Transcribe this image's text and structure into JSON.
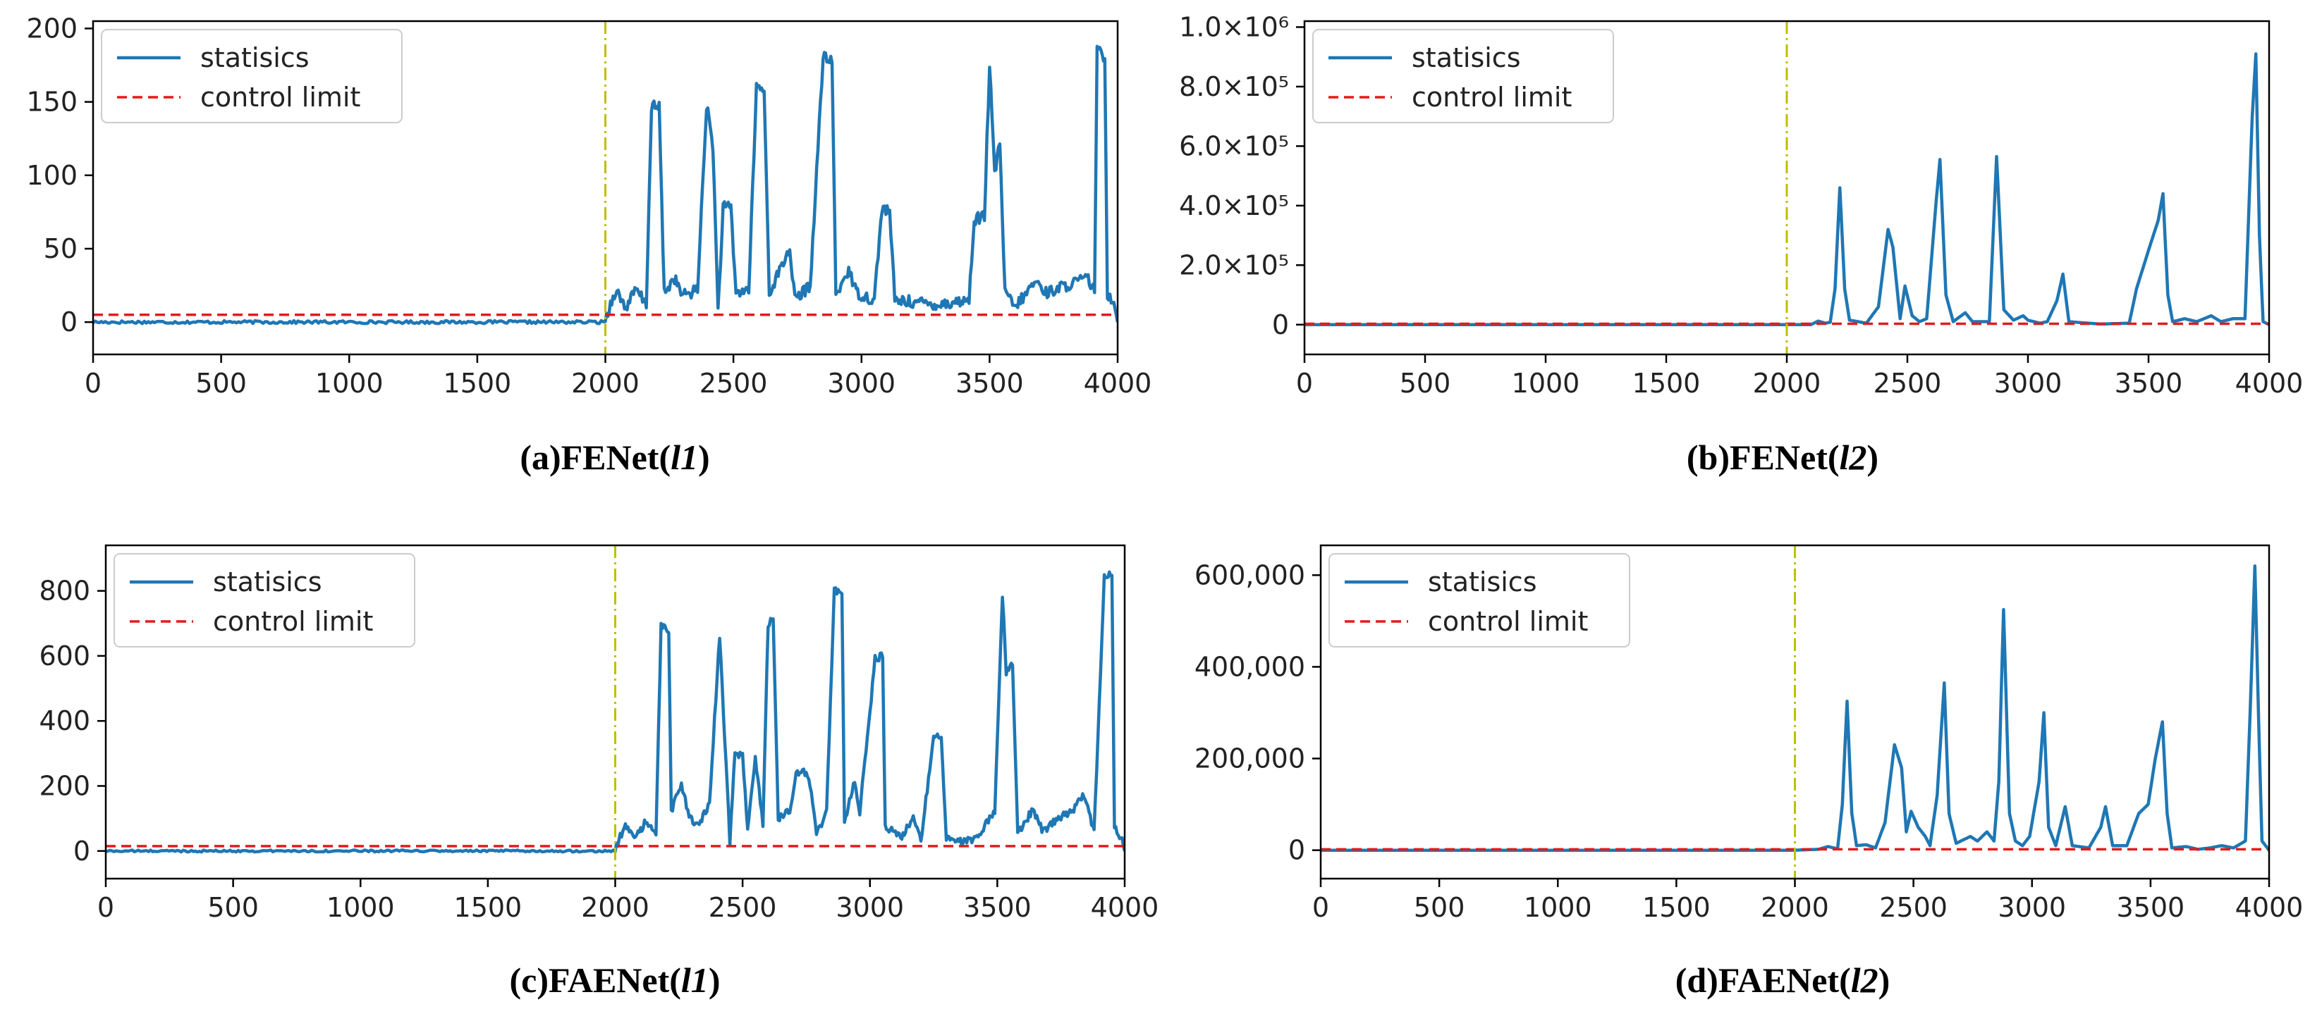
{
  "colors": {
    "series": "#1f77b4",
    "limit": "#e41a1c",
    "changepoint": "#bfbf00",
    "axes": "#000000"
  },
  "chart_data": [
    {
      "id": "a",
      "type": "line",
      "caption": {
        "prefix": "(a)FENet(",
        "italic": "l1",
        "suffix": ")"
      },
      "legend": {
        "series": "statisics",
        "limit": "control limit",
        "placement": "top-left"
      },
      "xlim": [
        0,
        4000
      ],
      "ylim": [
        -22,
        205
      ],
      "xticks": [
        0,
        500,
        1000,
        1500,
        2000,
        2500,
        3000,
        3500,
        4000
      ],
      "xtick_labels": [
        "0",
        "500",
        "1000",
        "1500",
        "2000",
        "2500",
        "3000",
        "3500",
        "4000"
      ],
      "yticks": [
        0,
        50,
        100,
        150,
        200
      ],
      "ytick_labels": [
        "0",
        "50",
        "100",
        "150",
        "200"
      ],
      "control_limit": 5,
      "changepoint": 2000,
      "baseline": 0,
      "noise": 1,
      "profile": [
        [
          2000,
          2
        ],
        [
          2040,
          22
        ],
        [
          2080,
          10
        ],
        [
          2120,
          22
        ],
        [
          2160,
          12
        ],
        [
          2180,
          147
        ],
        [
          2210,
          146
        ],
        [
          2230,
          20
        ],
        [
          2270,
          30
        ],
        [
          2300,
          18
        ],
        [
          2360,
          22
        ],
        [
          2395,
          148
        ],
        [
          2420,
          120
        ],
        [
          2440,
          8
        ],
        [
          2460,
          78
        ],
        [
          2490,
          78
        ],
        [
          2510,
          20
        ],
        [
          2560,
          22
        ],
        [
          2590,
          160
        ],
        [
          2620,
          158
        ],
        [
          2640,
          20
        ],
        [
          2720,
          50
        ],
        [
          2740,
          15
        ],
        [
          2800,
          25
        ],
        [
          2850,
          180
        ],
        [
          2885,
          178
        ],
        [
          2900,
          18
        ],
        [
          2950,
          36
        ],
        [
          2980,
          20
        ],
        [
          3050,
          15
        ],
        [
          3080,
          78
        ],
        [
          3110,
          75
        ],
        [
          3130,
          15
        ],
        [
          3300,
          12
        ],
        [
          3420,
          15
        ],
        [
          3440,
          70
        ],
        [
          3480,
          72
        ],
        [
          3500,
          175
        ],
        [
          3520,
          100
        ],
        [
          3540,
          123
        ],
        [
          3560,
          20
        ],
        [
          3600,
          10
        ],
        [
          3680,
          28
        ],
        [
          3720,
          20
        ],
        [
          3800,
          25
        ],
        [
          3880,
          30
        ],
        [
          3910,
          22
        ],
        [
          3920,
          185
        ],
        [
          3950,
          180
        ],
        [
          3960,
          20
        ],
        [
          3990,
          12
        ],
        [
          4000,
          0
        ]
      ]
    },
    {
      "id": "b",
      "type": "line",
      "caption": {
        "prefix": "(b)FENet(",
        "italic": "l2",
        "suffix": ")"
      },
      "legend": {
        "series": "statisics",
        "limit": "control limit",
        "placement": "top-left"
      },
      "xlim": [
        0,
        4000
      ],
      "ylim": [
        -100000,
        1020000
      ],
      "xticks": [
        0,
        500,
        1000,
        1500,
        2000,
        2500,
        3000,
        3500,
        4000
      ],
      "xtick_labels": [
        "0",
        "500",
        "1000",
        "1500",
        "2000",
        "2500",
        "3000",
        "3500",
        "4000"
      ],
      "yticks": [
        0,
        200000,
        400000,
        600000,
        800000,
        1000000
      ],
      "ytick_labels": [
        "0",
        "2.0×10⁵",
        "4.0×10⁵",
        "6.0×10⁵",
        "8.0×10⁵",
        "1.0×10⁶"
      ],
      "control_limit": 3000,
      "changepoint": 2000,
      "baseline": 0,
      "noise": 0,
      "profile": [
        [
          2000,
          0
        ],
        [
          2100,
          0
        ],
        [
          2130,
          12000
        ],
        [
          2160,
          5000
        ],
        [
          2180,
          8000
        ],
        [
          2200,
          120000
        ],
        [
          2220,
          460000
        ],
        [
          2240,
          120000
        ],
        [
          2260,
          15000
        ],
        [
          2330,
          5000
        ],
        [
          2380,
          60000
        ],
        [
          2420,
          320000
        ],
        [
          2440,
          260000
        ],
        [
          2470,
          20000
        ],
        [
          2490,
          130000
        ],
        [
          2520,
          30000
        ],
        [
          2550,
          10000
        ],
        [
          2580,
          20000
        ],
        [
          2620,
          420000
        ],
        [
          2635,
          555000
        ],
        [
          2660,
          100000
        ],
        [
          2690,
          10000
        ],
        [
          2740,
          40000
        ],
        [
          2770,
          10000
        ],
        [
          2840,
          10000
        ],
        [
          2870,
          565000
        ],
        [
          2900,
          50000
        ],
        [
          2940,
          15000
        ],
        [
          2980,
          30000
        ],
        [
          3000,
          15000
        ],
        [
          3050,
          5000
        ],
        [
          3080,
          10000
        ],
        [
          3120,
          80000
        ],
        [
          3145,
          170000
        ],
        [
          3170,
          10000
        ],
        [
          3250,
          5000
        ],
        [
          3300,
          2000
        ],
        [
          3420,
          5000
        ],
        [
          3450,
          120000
        ],
        [
          3500,
          250000
        ],
        [
          3540,
          350000
        ],
        [
          3560,
          440000
        ],
        [
          3580,
          100000
        ],
        [
          3600,
          10000
        ],
        [
          3650,
          20000
        ],
        [
          3700,
          10000
        ],
        [
          3760,
          30000
        ],
        [
          3800,
          10000
        ],
        [
          3850,
          20000
        ],
        [
          3900,
          20000
        ],
        [
          3930,
          700000
        ],
        [
          3945,
          910000
        ],
        [
          3960,
          300000
        ],
        [
          3975,
          10000
        ],
        [
          4000,
          0
        ]
      ]
    },
    {
      "id": "c",
      "type": "line",
      "caption": {
        "prefix": "(c)FAENet(",
        "italic": "l1",
        "suffix": ")"
      },
      "legend": {
        "series": "statisics",
        "limit": "control limit",
        "placement": "top-left"
      },
      "xlim": [
        0,
        4000
      ],
      "ylim": [
        -85,
        940
      ],
      "xticks": [
        0,
        500,
        1000,
        1500,
        2000,
        2500,
        3000,
        3500,
        4000
      ],
      "xtick_labels": [
        "0",
        "500",
        "1000",
        "1500",
        "2000",
        "2500",
        "3000",
        "3500",
        "4000"
      ],
      "yticks": [
        0,
        200,
        400,
        600,
        800
      ],
      "ytick_labels": [
        "0",
        "200",
        "400",
        "600",
        "800"
      ],
      "control_limit": 15,
      "changepoint": 2000,
      "baseline": 0,
      "noise": 3,
      "profile": [
        [
          2000,
          5
        ],
        [
          2040,
          80
        ],
        [
          2080,
          40
        ],
        [
          2120,
          90
        ],
        [
          2160,
          50
        ],
        [
          2180,
          690
        ],
        [
          2210,
          680
        ],
        [
          2220,
          120
        ],
        [
          2260,
          210
        ],
        [
          2290,
          100
        ],
        [
          2330,
          80
        ],
        [
          2370,
          150
        ],
        [
          2410,
          660
        ],
        [
          2430,
          350
        ],
        [
          2450,
          30
        ],
        [
          2470,
          300
        ],
        [
          2500,
          290
        ],
        [
          2520,
          60
        ],
        [
          2550,
          290
        ],
        [
          2580,
          80
        ],
        [
          2600,
          700
        ],
        [
          2620,
          720
        ],
        [
          2640,
          100
        ],
        [
          2690,
          130
        ],
        [
          2710,
          230
        ],
        [
          2730,
          250
        ],
        [
          2760,
          230
        ],
        [
          2790,
          50
        ],
        [
          2830,
          120
        ],
        [
          2860,
          800
        ],
        [
          2890,
          800
        ],
        [
          2900,
          80
        ],
        [
          2940,
          220
        ],
        [
          2960,
          120
        ],
        [
          2990,
          350
        ],
        [
          3020,
          590
        ],
        [
          3050,
          600
        ],
        [
          3060,
          80
        ],
        [
          3120,
          40
        ],
        [
          3170,
          100
        ],
        [
          3200,
          30
        ],
        [
          3250,
          350
        ],
        [
          3280,
          360
        ],
        [
          3300,
          40
        ],
        [
          3360,
          30
        ],
        [
          3420,
          40
        ],
        [
          3470,
          100
        ],
        [
          3490,
          120
        ],
        [
          3520,
          790
        ],
        [
          3535,
          550
        ],
        [
          3560,
          580
        ],
        [
          3580,
          50
        ],
        [
          3640,
          130
        ],
        [
          3680,
          60
        ],
        [
          3740,
          100
        ],
        [
          3790,
          120
        ],
        [
          3840,
          170
        ],
        [
          3880,
          60
        ],
        [
          3920,
          850
        ],
        [
          3950,
          850
        ],
        [
          3960,
          80
        ],
        [
          3990,
          30
        ],
        [
          4000,
          0
        ]
      ]
    },
    {
      "id": "d",
      "type": "line",
      "caption": {
        "prefix": "(d)FAENet(",
        "italic": "l2",
        "suffix": ")"
      },
      "legend": {
        "series": "statisics",
        "limit": "control limit",
        "placement": "top-left"
      },
      "xlim": [
        0,
        4000
      ],
      "ylim": [
        -62000,
        665000
      ],
      "xticks": [
        0,
        500,
        1000,
        1500,
        2000,
        2500,
        3000,
        3500,
        4000
      ],
      "xtick_labels": [
        "0",
        "500",
        "1000",
        "1500",
        "2000",
        "2500",
        "3000",
        "3500",
        "4000"
      ],
      "yticks": [
        0,
        200000,
        400000,
        600000
      ],
      "ytick_labels": [
        "0",
        "200,000",
        "400,000",
        "600,000"
      ],
      "control_limit": 2000,
      "changepoint": 2000,
      "baseline": 0,
      "noise": 0,
      "profile": [
        [
          2000,
          0
        ],
        [
          2100,
          2000
        ],
        [
          2140,
          8000
        ],
        [
          2180,
          3000
        ],
        [
          2200,
          100000
        ],
        [
          2220,
          325000
        ],
        [
          2240,
          80000
        ],
        [
          2260,
          10000
        ],
        [
          2300,
          12000
        ],
        [
          2340,
          5000
        ],
        [
          2380,
          60000
        ],
        [
          2420,
          230000
        ],
        [
          2450,
          180000
        ],
        [
          2470,
          40000
        ],
        [
          2490,
          85000
        ],
        [
          2520,
          50000
        ],
        [
          2550,
          30000
        ],
        [
          2570,
          10000
        ],
        [
          2600,
          120000
        ],
        [
          2630,
          365000
        ],
        [
          2650,
          80000
        ],
        [
          2680,
          15000
        ],
        [
          2740,
          30000
        ],
        [
          2770,
          20000
        ],
        [
          2810,
          40000
        ],
        [
          2840,
          20000
        ],
        [
          2860,
          150000
        ],
        [
          2880,
          525000
        ],
        [
          2905,
          80000
        ],
        [
          2930,
          20000
        ],
        [
          2960,
          10000
        ],
        [
          2990,
          30000
        ],
        [
          3030,
          150000
        ],
        [
          3050,
          300000
        ],
        [
          3070,
          50000
        ],
        [
          3100,
          10000
        ],
        [
          3140,
          95000
        ],
        [
          3170,
          10000
        ],
        [
          3240,
          5000
        ],
        [
          3290,
          50000
        ],
        [
          3310,
          95000
        ],
        [
          3340,
          10000
        ],
        [
          3400,
          10000
        ],
        [
          3450,
          80000
        ],
        [
          3490,
          100000
        ],
        [
          3520,
          200000
        ],
        [
          3550,
          280000
        ],
        [
          3570,
          80000
        ],
        [
          3590,
          5000
        ],
        [
          3650,
          8000
        ],
        [
          3700,
          2000
        ],
        [
          3750,
          5000
        ],
        [
          3800,
          10000
        ],
        [
          3850,
          5000
        ],
        [
          3900,
          20000
        ],
        [
          3920,
          300000
        ],
        [
          3940,
          620000
        ],
        [
          3955,
          300000
        ],
        [
          3970,
          20000
        ],
        [
          4000,
          0
        ]
      ]
    }
  ]
}
